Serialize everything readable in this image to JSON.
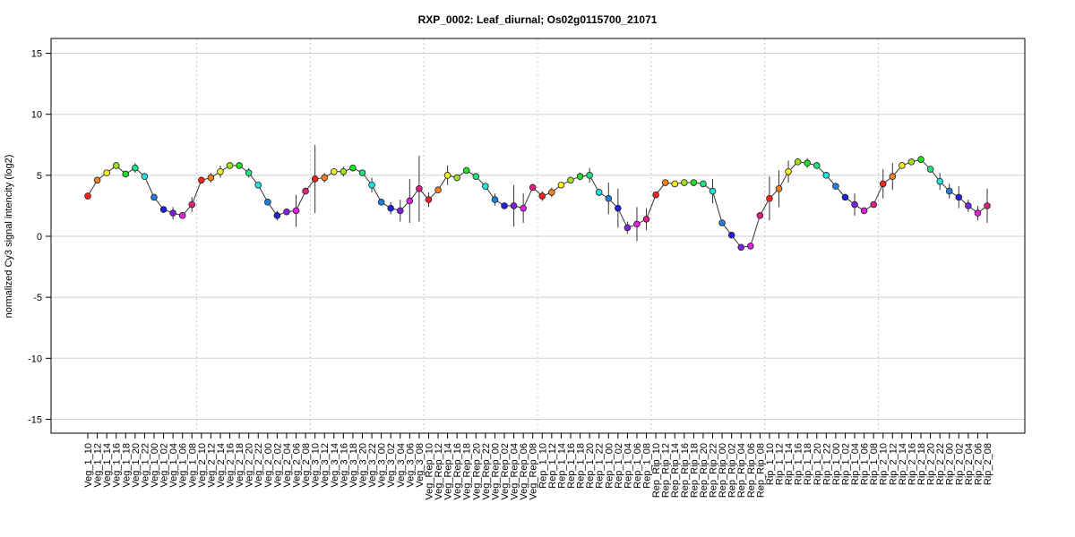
{
  "chart_data": {
    "type": "line",
    "title": "RXP_0002: Leaf_diurnal; Os02g0115700_21071",
    "xlabel": "",
    "ylabel": "normalized Cy3 signal intencity (log2)",
    "ylim": [
      -16,
      16
    ],
    "yticks": [
      -15,
      -10,
      -5,
      0,
      5,
      10,
      15
    ],
    "grid": true,
    "groups": [
      "Veg_1",
      "Veg_2",
      "Veg_3",
      "Veg_Rep",
      "Rep_1",
      "Rep_Rip",
      "Rip_1",
      "Rip_2"
    ],
    "times": [
      "10",
      "12",
      "14",
      "16",
      "18",
      "20",
      "22",
      "00",
      "02",
      "04",
      "06",
      "08"
    ],
    "point_colors": [
      "#ff2020",
      "#f08020",
      "#f0f020",
      "#a0e020",
      "#20e020",
      "#20e080",
      "#20e0e0",
      "#2080e0",
      "#2020e0",
      "#8020e0",
      "#e020e0",
      "#e02080"
    ],
    "values": [
      3.3,
      4.6,
      5.2,
      5.8,
      5.1,
      5.6,
      4.9,
      3.2,
      2.2,
      1.9,
      1.7,
      2.6,
      4.6,
      4.8,
      5.3,
      5.8,
      5.8,
      5.2,
      4.2,
      2.8,
      1.7,
      2.0,
      2.1,
      3.7,
      4.7,
      4.8,
      5.3,
      5.3,
      5.6,
      5.2,
      4.2,
      2.8,
      2.3,
      2.1,
      2.9,
      3.9,
      3.0,
      3.8,
      5.0,
      4.8,
      5.4,
      4.9,
      4.1,
      3.0,
      2.5,
      2.5,
      2.3,
      4.0,
      3.3,
      3.6,
      4.2,
      4.6,
      4.9,
      5.0,
      3.6,
      3.1,
      2.3,
      0.7,
      1.0,
      1.4,
      3.4,
      4.4,
      4.3,
      4.4,
      4.4,
      4.3,
      3.7,
      1.1,
      0.1,
      -0.9,
      -0.8,
      1.7,
      3.1,
      3.9,
      5.3,
      6.1,
      6.0,
      5.8,
      5.0,
      4.1,
      3.2,
      2.6,
      2.1,
      2.6,
      4.3,
      4.9,
      5.8,
      6.1,
      6.3,
      5.5,
      4.5,
      3.7,
      3.2,
      2.5,
      1.9,
      2.5
    ],
    "errors": [
      0.2,
      0.2,
      0.1,
      0.2,
      0.2,
      0.4,
      0.2,
      0.1,
      0.2,
      0.5,
      0.2,
      0.6,
      0.2,
      0.4,
      0.5,
      0.2,
      0.2,
      0.4,
      0.2,
      0.2,
      0.4,
      0.2,
      1.3,
      0.2,
      2.8,
      0.4,
      0.2,
      0.4,
      0.2,
      0.2,
      0.6,
      0.2,
      0.5,
      0.9,
      1.8,
      2.7,
      0.6,
      0.2,
      0.8,
      0.2,
      0.2,
      0.2,
      0.2,
      0.5,
      0.2,
      1.7,
      1.2,
      0.2,
      0.4,
      0.4,
      0.2,
      0.2,
      0.3,
      0.6,
      0.3,
      1.3,
      1.6,
      0.5,
      1.4,
      0.9,
      0.2,
      0.2,
      0.2,
      0.2,
      0.2,
      0.2,
      1.0,
      0.2,
      0.2,
      0.2,
      0.2,
      0.2,
      1.8,
      1.5,
      0.9,
      0.2,
      0.4,
      0.2,
      0.2,
      0.2,
      0.2,
      0.9,
      0.2,
      0.2,
      1.2,
      1.1,
      0.2,
      0.2,
      0.3,
      0.2,
      0.7,
      0.6,
      0.9,
      0.5,
      0.6,
      1.4
    ]
  }
}
